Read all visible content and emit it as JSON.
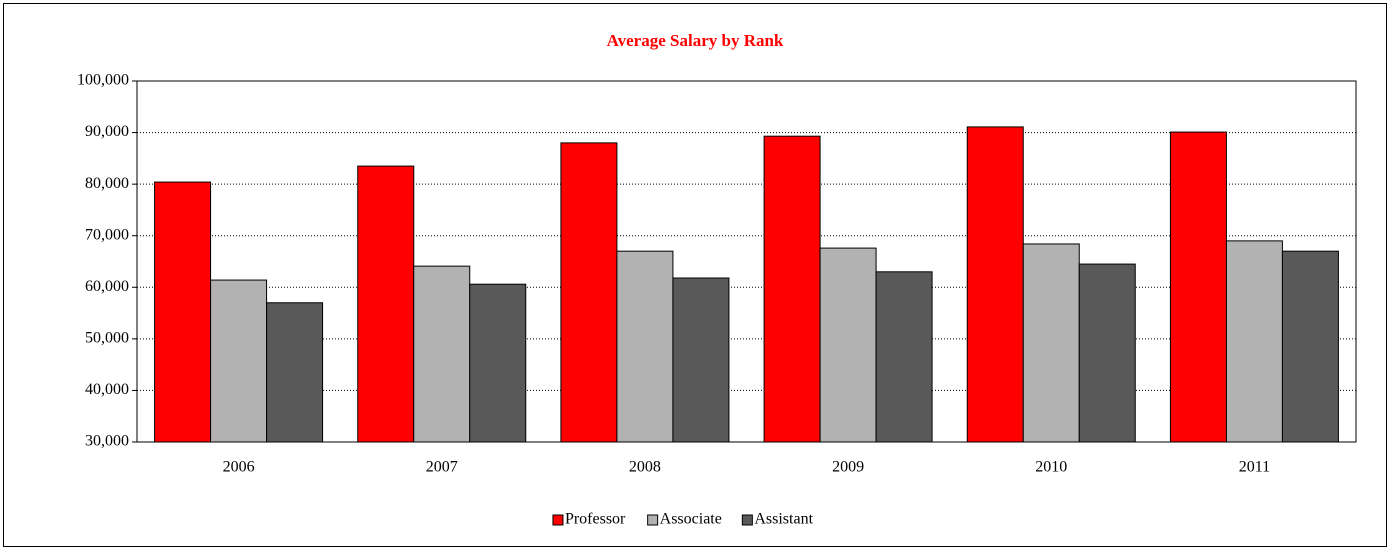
{
  "chart_data": {
    "type": "bar",
    "title": "Average Salary by Rank",
    "categories": [
      "2006",
      "2007",
      "2008",
      "2009",
      "2010",
      "2011"
    ],
    "series": [
      {
        "name": "Professor",
        "color": "#ff0000",
        "values": [
          80400,
          83500,
          88000,
          89300,
          91100,
          90100
        ]
      },
      {
        "name": "Associate",
        "color": "#b2b2b2",
        "values": [
          61400,
          64100,
          67000,
          67600,
          68400,
          69000
        ]
      },
      {
        "name": "Assistant",
        "color": "#595959",
        "values": [
          57000,
          60600,
          61800,
          63000,
          64500,
          67000
        ]
      }
    ],
    "ylim": [
      30000,
      100000
    ],
    "yticks": [
      {
        "value": 30000,
        "label": "30,000"
      },
      {
        "value": 40000,
        "label": "40,000"
      },
      {
        "value": 50000,
        "label": "50,000"
      },
      {
        "value": 60000,
        "label": "60,000"
      },
      {
        "value": 70000,
        "label": "70,000"
      },
      {
        "value": 80000,
        "label": "80,000"
      },
      {
        "value": 90000,
        "label": "90,000"
      },
      {
        "value": 100000,
        "label": "100,000"
      }
    ],
    "grid": true,
    "legend": "bottom"
  }
}
